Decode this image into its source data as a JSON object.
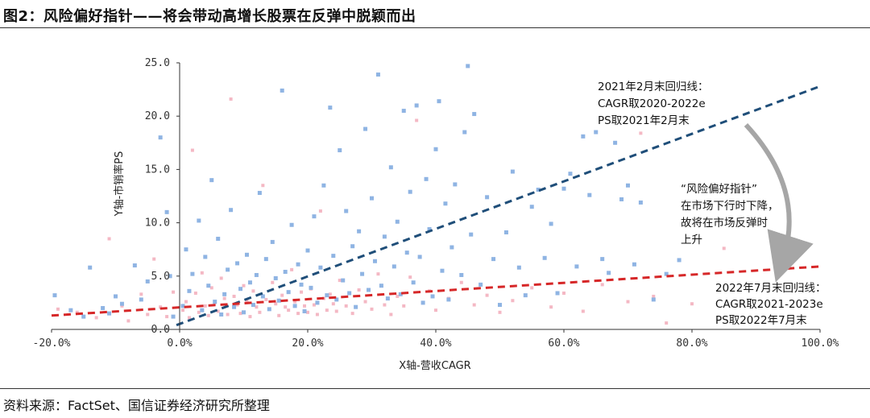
{
  "title": "图2：风险偏好指针——将会带动高增长股票在反弹中脱颖而出",
  "source": "资料来源：FactSet、国信证券经济研究所整理",
  "chart_data": {
    "type": "scatter",
    "xlabel": "X轴-营收CAGR",
    "ylabel": "Y轴-市销率PS",
    "xlim": [
      -20,
      100
    ],
    "ylim": [
      0,
      25
    ],
    "x_ticks": [
      "-20.0%",
      "0.0%",
      "20.0%",
      "40.0%",
      "60.0%",
      "80.0%",
      "100.0%"
    ],
    "y_ticks": [
      "0.0",
      "5.0",
      "10.0",
      "15.0",
      "20.0",
      "25.0"
    ],
    "grid": false,
    "colors": {
      "blue_points": "#8fb4e3",
      "pink_points": "#f4b8c4",
      "blue_line": "#1f4e79",
      "red_line": "#d62728",
      "arrow": "#a6a6a6"
    },
    "series": [
      {
        "name": "2021年2月末",
        "style": "points",
        "points": [
          [
            -19.5,
            3.2
          ],
          [
            -17,
            1.8
          ],
          [
            -15,
            1.2
          ],
          [
            -14,
            5.8
          ],
          [
            -12,
            2
          ],
          [
            -11,
            1.5
          ],
          [
            -10,
            3.1
          ],
          [
            -9,
            2.4
          ],
          [
            -7,
            6
          ],
          [
            -6,
            2.8
          ],
          [
            -5,
            4.5
          ],
          [
            -3,
            18
          ],
          [
            -2,
            11
          ],
          [
            -1.5,
            5
          ],
          [
            -1,
            1.2
          ],
          [
            0.5,
            2.2
          ],
          [
            1,
            7.5
          ],
          [
            1.5,
            3.6
          ],
          [
            2,
            5.2
          ],
          [
            3,
            10.2
          ],
          [
            3.5,
            1.8
          ],
          [
            4,
            6.8
          ],
          [
            4.5,
            4.1
          ],
          [
            5,
            14
          ],
          [
            5.5,
            2.6
          ],
          [
            6,
            8.5
          ],
          [
            6.5,
            1.4
          ],
          [
            7,
            3.3
          ],
          [
            7.5,
            5.6
          ],
          [
            8,
            11.2
          ],
          [
            8.5,
            2.1
          ],
          [
            9,
            6.2
          ],
          [
            9.5,
            3.8
          ],
          [
            10,
            1.6
          ],
          [
            10.5,
            7
          ],
          [
            11,
            4.4
          ],
          [
            11.5,
            2.3
          ],
          [
            12,
            5.1
          ],
          [
            12.5,
            12.8
          ],
          [
            13,
            3.1
          ],
          [
            13.5,
            6.6
          ],
          [
            14,
            1.9
          ],
          [
            14.5,
            8.2
          ],
          [
            15,
            4.8
          ],
          [
            15.5,
            2.7
          ],
          [
            16,
            22.4
          ],
          [
            16.5,
            5.4
          ],
          [
            17,
            3.5
          ],
          [
            17.5,
            9.8
          ],
          [
            18,
            2.2
          ],
          [
            18.5,
            6.1
          ],
          [
            19,
            4.2
          ],
          [
            19.5,
            1.7
          ],
          [
            20,
            7.4
          ],
          [
            20.5,
            3.9
          ],
          [
            21,
            10.6
          ],
          [
            21.5,
            2.5
          ],
          [
            22,
            5.8
          ],
          [
            22.5,
            13.5
          ],
          [
            23,
            3.2
          ],
          [
            23.5,
            20.8
          ],
          [
            24,
            6.9
          ],
          [
            24.5,
            2.8
          ],
          [
            25,
            16.8
          ],
          [
            25.5,
            4.6
          ],
          [
            26,
            11.1
          ],
          [
            26.5,
            3.4
          ],
          [
            27,
            7.8
          ],
          [
            27.5,
            2.1
          ],
          [
            28,
            9.2
          ],
          [
            28.5,
            5.2
          ],
          [
            29,
            18.8
          ],
          [
            29.5,
            3.7
          ],
          [
            30,
            12.3
          ],
          [
            30.5,
            6.4
          ],
          [
            31,
            23.9
          ],
          [
            31.5,
            4.1
          ],
          [
            32,
            8.7
          ],
          [
            32.5,
            2.9
          ],
          [
            33,
            15.2
          ],
          [
            33.5,
            5.9
          ],
          [
            34,
            10.1
          ],
          [
            34.5,
            3.3
          ],
          [
            35,
            20.5
          ],
          [
            35.5,
            7.2
          ],
          [
            36,
            12.9
          ],
          [
            36.5,
            4.4
          ],
          [
            37,
            21
          ],
          [
            37.5,
            6.8
          ],
          [
            38,
            2.5
          ],
          [
            38.5,
            14.1
          ],
          [
            39,
            9.4
          ],
          [
            39.5,
            3.1
          ],
          [
            40,
            16.9
          ],
          [
            40.5,
            21.4
          ],
          [
            41,
            5.5
          ],
          [
            41.5,
            11.8
          ],
          [
            42,
            2.8
          ],
          [
            42.5,
            7.7
          ],
          [
            43,
            13.6
          ],
          [
            44,
            5.1
          ],
          [
            44.5,
            18.5
          ],
          [
            45,
            24.7
          ],
          [
            45.5,
            8.9
          ],
          [
            46,
            20.2
          ],
          [
            47,
            4.2
          ],
          [
            48,
            12.4
          ],
          [
            49,
            6.6
          ],
          [
            50,
            2.3
          ],
          [
            51,
            9.1
          ],
          [
            52,
            14.8
          ],
          [
            53,
            5.8
          ],
          [
            54,
            3.2
          ],
          [
            55,
            11.5
          ],
          [
            56,
            13.1
          ],
          [
            57,
            6.7
          ],
          [
            58,
            9.9
          ],
          [
            59,
            3.4
          ],
          [
            60,
            13.2
          ],
          [
            61,
            14.6
          ],
          [
            62,
            5.9
          ],
          [
            63,
            18.1
          ],
          [
            64,
            12.6
          ],
          [
            65,
            18.5
          ],
          [
            66,
            6.6
          ],
          [
            67,
            5.3
          ],
          [
            68,
            17.5
          ],
          [
            69,
            12.2
          ],
          [
            70,
            13.5
          ],
          [
            71,
            6.1
          ],
          [
            72,
            11.9
          ],
          [
            74,
            2.8
          ],
          [
            76,
            5.2
          ],
          [
            78,
            6.5
          ],
          [
            93,
            8.5
          ]
        ]
      },
      {
        "name": "2022年7月末",
        "style": "points",
        "points": [
          [
            -19,
            1.9
          ],
          [
            -16,
            1.6
          ],
          [
            -13,
            1.1
          ],
          [
            -11,
            8.5
          ],
          [
            -9,
            2.2
          ],
          [
            -8,
            0.8
          ],
          [
            -6,
            3.3
          ],
          [
            -5,
            1.4
          ],
          [
            -4,
            6.6
          ],
          [
            -3,
            2.1
          ],
          [
            -2,
            1.2
          ],
          [
            -1,
            3.5
          ],
          [
            0.5,
            1.8
          ],
          [
            1,
            2.6
          ],
          [
            1.5,
            1.1
          ],
          [
            2,
            16.8
          ],
          [
            2.5,
            3.4
          ],
          [
            3,
            1.6
          ],
          [
            3.5,
            5.3
          ],
          [
            4,
            2.2
          ],
          [
            4.5,
            1.3
          ],
          [
            5,
            3.9
          ],
          [
            5.5,
            2.5
          ],
          [
            6,
            1.7
          ],
          [
            6.5,
            4.8
          ],
          [
            7,
            2.9
          ],
          [
            7.5,
            1.4
          ],
          [
            8,
            21.6
          ],
          [
            8.5,
            3.1
          ],
          [
            9,
            2.3
          ],
          [
            9.5,
            1.5
          ],
          [
            10,
            4.1
          ],
          [
            10.5,
            2.7
          ],
          [
            11,
            1.2
          ],
          [
            11.5,
            3.6
          ],
          [
            12,
            2.1
          ],
          [
            12.5,
            1.6
          ],
          [
            13,
            13.5
          ],
          [
            13.5,
            2.8
          ],
          [
            14,
            1.9
          ],
          [
            14.5,
            4.4
          ],
          [
            15,
            2.4
          ],
          [
            15.5,
            1.3
          ],
          [
            16,
            3.2
          ],
          [
            16.5,
            2.1
          ],
          [
            17,
            1.8
          ],
          [
            17.5,
            5.6
          ],
          [
            18,
            2.6
          ],
          [
            18.5,
            1.5
          ],
          [
            19,
            3.5
          ],
          [
            19.5,
            2.2
          ],
          [
            20,
            1.6
          ],
          [
            20.5,
            3.8
          ],
          [
            21,
            2.3
          ],
          [
            21.5,
            1.4
          ],
          [
            22,
            11.1
          ],
          [
            22.5,
            2.9
          ],
          [
            23,
            1.8
          ],
          [
            23.5,
            3.3
          ],
          [
            24,
            2.4
          ],
          [
            24.5,
            1.7
          ],
          [
            25,
            4.6
          ],
          [
            26,
            2.2
          ],
          [
            27,
            1.5
          ],
          [
            28,
            3.7
          ],
          [
            29,
            2.6
          ],
          [
            30,
            1.9
          ],
          [
            31,
            5.2
          ],
          [
            32,
            2.3
          ],
          [
            33,
            1.4
          ],
          [
            34,
            3.1
          ],
          [
            35,
            2.2
          ],
          [
            36,
            4.9
          ],
          [
            37,
            19.6
          ],
          [
            38,
            2.5
          ],
          [
            39,
            3.6
          ],
          [
            40,
            1.8
          ],
          [
            42,
            2.9
          ],
          [
            44,
            4.4
          ],
          [
            46,
            2.3
          ],
          [
            48,
            3.2
          ],
          [
            50,
            1.6
          ],
          [
            52,
            2.7
          ],
          [
            55,
            3.9
          ],
          [
            58,
            2.1
          ],
          [
            60,
            3.4
          ],
          [
            63,
            1.7
          ],
          [
            66,
            4.2
          ],
          [
            70,
            2.6
          ],
          [
            72,
            18.4
          ],
          [
            74,
            3.1
          ],
          [
            76,
            0.6
          ],
          [
            80,
            2.4
          ],
          [
            85,
            7.6
          ]
        ]
      },
      {
        "name": "2021年2月末回归线",
        "style": "dashed-line",
        "x": [
          -0.5,
          100
        ],
        "y": [
          0.4,
          22.8
        ]
      },
      {
        "name": "2022年7月末回归线",
        "style": "dashed-line",
        "x": [
          -20,
          100
        ],
        "y": [
          1.3,
          5.9
        ]
      }
    ],
    "annotations": [
      {
        "name": "ann-2021-line",
        "lines": [
          "2021年2月末回归线：",
          "CAGR取2020-2022e",
          "PS取2021年2月末"
        ]
      },
      {
        "name": "ann-risk-pointer",
        "lines": [
          "“风险偏好指针”",
          "在市场下行时下降，",
          "故将在市场反弹时",
          "上升"
        ]
      },
      {
        "name": "ann-2022-line",
        "lines": [
          "2022年7月末回归线：",
          "CAGR取2021-2023e",
          "PS取2022年7月末"
        ]
      }
    ]
  }
}
